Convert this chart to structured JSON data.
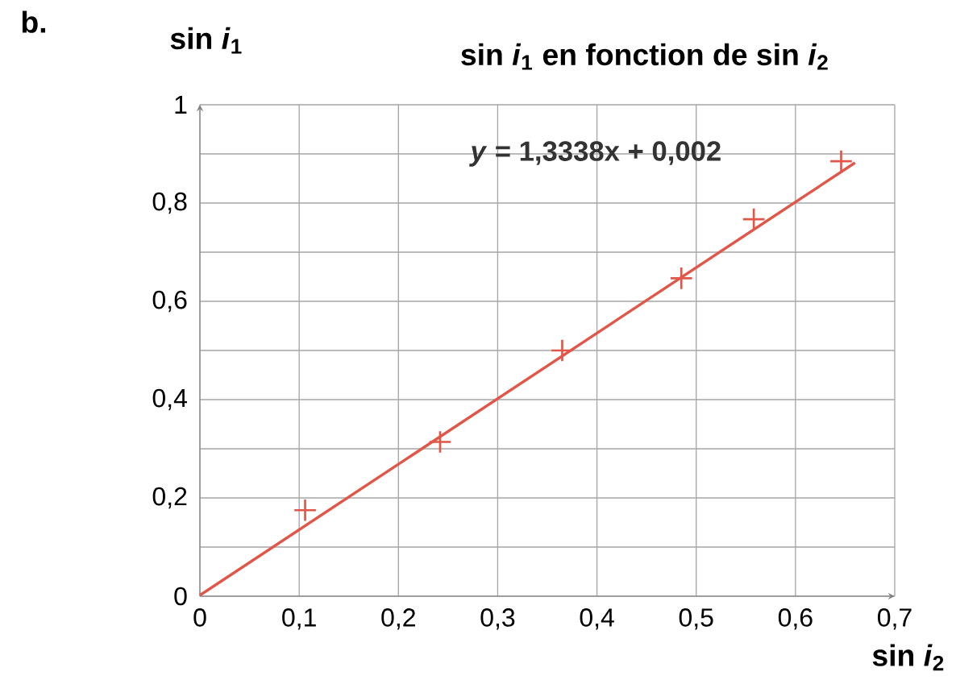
{
  "chart_data": {
    "type": "scatter",
    "title": "sin *i*$_{1}$ en fonction de sin *i*$_{2}$",
    "xlabel": "sin *i*$_{2}$",
    "ylabel": "sin *i*$_{1}$",
    "annotations": [
      "b.",
      "*y* = 1,3338x + 0,002"
    ],
    "series": [
      {
        "color": "#e0574a",
        "marker": "cross",
        "x": [
          0.106,
          0.242,
          0.365,
          0.485,
          0.558,
          0.646
        ],
        "values": [
          0.175,
          0.314,
          0.5,
          0.647,
          0.767,
          0.885
        ]
      },
      {
        "type": "line",
        "color": "#e0574a",
        "marker": "none",
        "line_style": "solid",
        "x": [
          0,
          0.66
        ],
        "values": [
          0.002,
          0.882
        ]
      }
    ],
    "xlim": [
      0,
      0.7
    ],
    "ylim": [
      0,
      1
    ],
    "xticks": [
      0,
      {
        "value": 0.1,
        "label": "0,1"
      },
      {
        "value": 0.2,
        "label": "0,2"
      },
      {
        "value": 0.3,
        "label": "0,3"
      },
      {
        "value": 0.4,
        "label": "0,4"
      },
      {
        "value": 0.5,
        "label": "0,5"
      },
      {
        "value": 0.6,
        "label": "0,6"
      },
      {
        "value": 0.7,
        "label": "0,7"
      }
    ],
    "yticks": [
      0,
      {
        "value": 0.1,
        "label": null
      },
      {
        "value": 0.2,
        "label": "0,2"
      },
      {
        "value": 0.3,
        "label": null
      },
      {
        "value": 0.4,
        "label": "0,4"
      },
      {
        "value": 0.5,
        "label": null
      },
      {
        "value": 0.6,
        "label": "0,6"
      },
      {
        "value": 0.7,
        "label": null
      },
      {
        "value": 0.8,
        "label": "0,8"
      },
      {
        "value": 0.9,
        "label": null
      },
      1
    ],
    "grid": true
  }
}
